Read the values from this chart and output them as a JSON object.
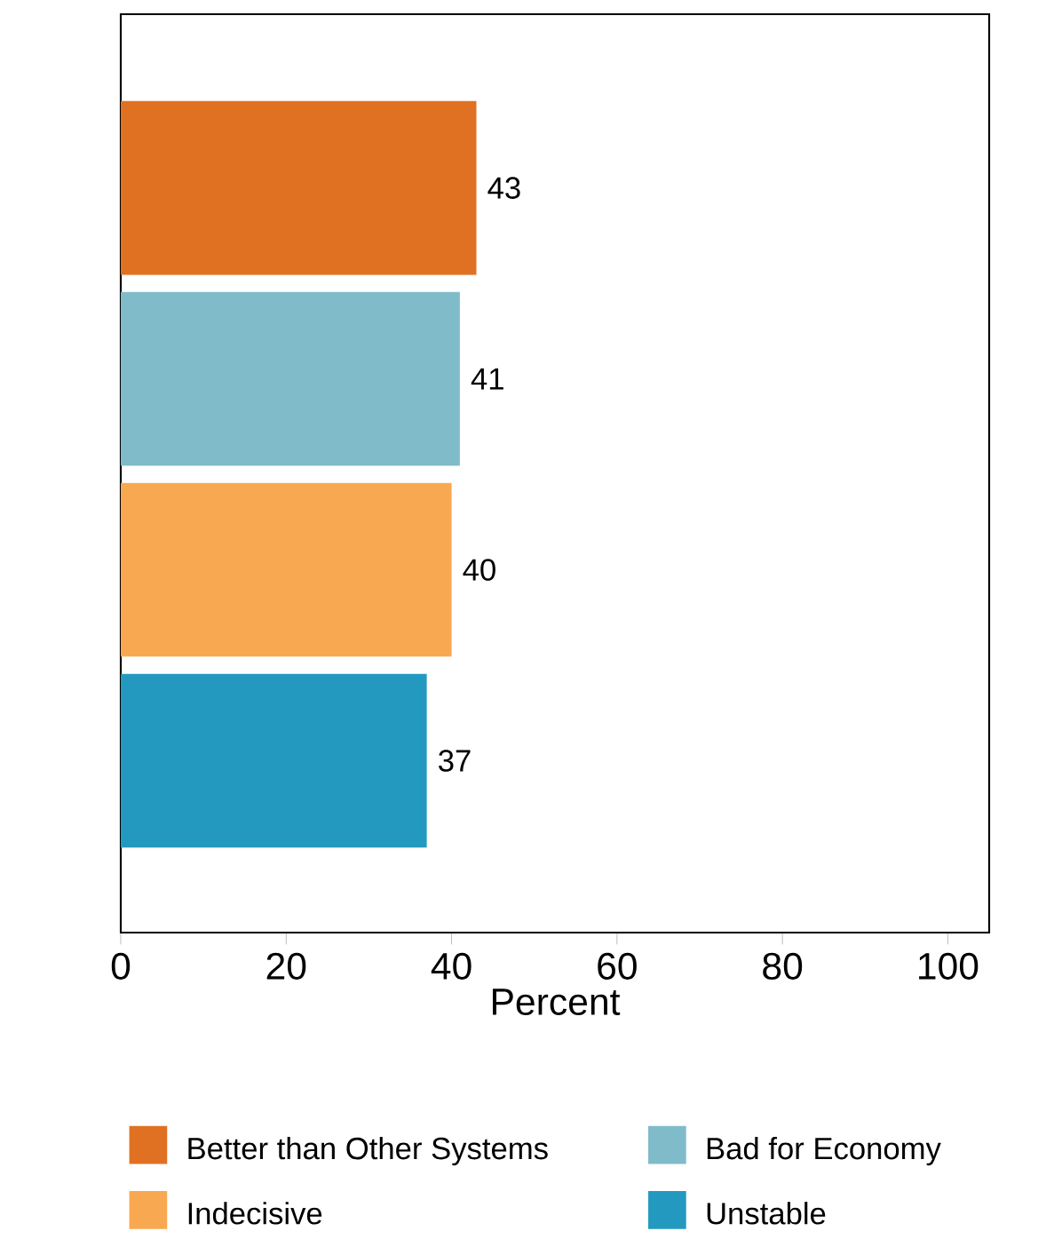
{
  "chart_data": {
    "type": "bar",
    "orientation": "horizontal",
    "categories": [
      null
    ],
    "series": [
      {
        "name": "Better than Other Systems",
        "color": "#e07122",
        "values": [
          43
        ]
      },
      {
        "name": "Bad for Economy",
        "color": "#80bbc9",
        "values": [
          41
        ]
      },
      {
        "name": "Indecisive",
        "color": "#f8a851",
        "values": [
          40
        ]
      },
      {
        "name": "Unstable",
        "color": "#2399bf",
        "values": [
          37
        ]
      }
    ],
    "xlim": [
      0,
      105
    ],
    "xticks": [
      0,
      20,
      40,
      60,
      80,
      100
    ],
    "xlabel": "Percent",
    "data_labels": true,
    "legend": "bottom"
  }
}
